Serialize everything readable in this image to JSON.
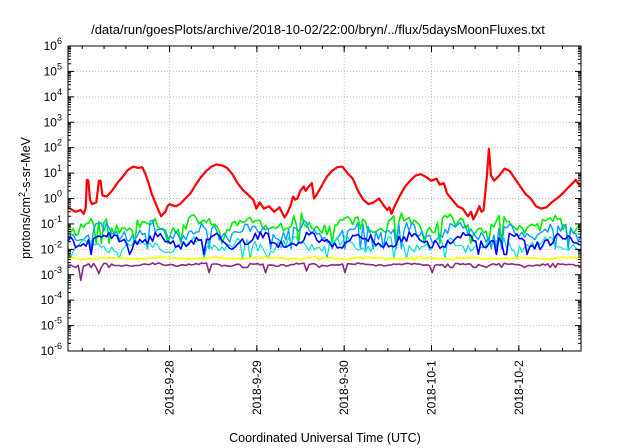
{
  "chart_data": {
    "type": "line",
    "title": "/data/run/goesPlots/archive/2018-10-02/22:00/bryn/../flux/5daysMoonFluxes.txt",
    "xlabel": "Coordinated Universal Time (UTC)",
    "ylabel": {
      "prefix": "protons/cm",
      "sup": "2",
      "suffix": "-s-sr-MeV"
    },
    "y_scale": "log",
    "ylim_exp": [
      -6,
      6
    ],
    "y_tick_base": "10",
    "y_ticks_exp": [
      -6,
      -5,
      -4,
      -3,
      -2,
      -1,
      0,
      1,
      2,
      3,
      4,
      5,
      6
    ],
    "x_range_days": [
      -1.97,
      2.93
    ],
    "x_ticks": [
      {
        "label": "2018-9-28",
        "day": -1
      },
      {
        "label": "2018-9-29",
        "day": -0.166
      },
      {
        "label": "2018-9-30",
        "day": 0.668
      },
      {
        "label": "2018-10-1",
        "day": 1.502
      },
      {
        "label": "2018-10-2",
        "day": 2.336
      }
    ],
    "grid": true,
    "legend": "none",
    "series": [
      {
        "color": "#ff0000",
        "width": 2.2,
        "points": [
          [
            -1.97,
            0.45
          ],
          [
            -1.9,
            0.3
          ],
          [
            -1.85,
            0.35
          ],
          [
            -1.82,
            0.25
          ],
          [
            -1.8,
            0.45
          ],
          [
            -1.79,
            5.5
          ],
          [
            -1.775,
            5.0
          ],
          [
            -1.76,
            0.9
          ],
          [
            -1.74,
            0.6
          ],
          [
            -1.7,
            0.7
          ],
          [
            -1.675,
            5.0
          ],
          [
            -1.66,
            5.0
          ],
          [
            -1.64,
            1.3
          ],
          [
            -1.6,
            1.2
          ],
          [
            -1.55,
            2.0
          ],
          [
            -1.5,
            4.0
          ],
          [
            -1.45,
            7.0
          ],
          [
            -1.4,
            13.0
          ],
          [
            -1.35,
            18.0
          ],
          [
            -1.3,
            16.0
          ],
          [
            -1.26,
            17.0
          ],
          [
            -1.23,
            9.0
          ],
          [
            -1.2,
            4.0
          ],
          [
            -1.17,
            1.5
          ],
          [
            -1.13,
            0.6
          ],
          [
            -1.1,
            0.3
          ],
          [
            -1.08,
            0.2
          ],
          [
            -1.06,
            0.25
          ],
          [
            -1.04,
            0.3
          ],
          [
            -1.02,
            0.5
          ],
          [
            -1.0,
            0.6
          ],
          [
            -0.98,
            0.55
          ],
          [
            -0.94,
            0.5
          ],
          [
            -0.9,
            0.6
          ],
          [
            -0.85,
            1.0
          ],
          [
            -0.8,
            1.6
          ],
          [
            -0.75,
            3.5
          ],
          [
            -0.7,
            7.0
          ],
          [
            -0.65,
            12.0
          ],
          [
            -0.6,
            18.0
          ],
          [
            -0.55,
            22.0
          ],
          [
            -0.5,
            20.0
          ],
          [
            -0.45,
            16.0
          ],
          [
            -0.4,
            9.0
          ],
          [
            -0.35,
            4.0
          ],
          [
            -0.3,
            2.2
          ],
          [
            -0.25,
            1.4
          ],
          [
            -0.2,
            0.9
          ],
          [
            -0.17,
            0.4
          ],
          [
            -0.14,
            0.7
          ],
          [
            -0.1,
            0.4
          ],
          [
            -0.05,
            0.5
          ],
          [
            0.0,
            0.3
          ],
          [
            0.05,
            0.45
          ],
          [
            0.08,
            0.25
          ],
          [
            0.1,
            0.18
          ],
          [
            0.13,
            0.3
          ],
          [
            0.16,
            0.6
          ],
          [
            0.18,
            1.2
          ],
          [
            0.2,
            0.9
          ],
          [
            0.22,
            1.0
          ],
          [
            0.25,
            2.0
          ],
          [
            0.28,
            3.0
          ],
          [
            0.3,
            2.0
          ],
          [
            0.33,
            3.0
          ],
          [
            0.36,
            4.0
          ],
          [
            0.38,
            1.0
          ],
          [
            0.4,
            1.3
          ],
          [
            0.45,
            3.0
          ],
          [
            0.5,
            7.0
          ],
          [
            0.55,
            12.0
          ],
          [
            0.6,
            17.0
          ],
          [
            0.65,
            18.0
          ],
          [
            0.7,
            10.0
          ],
          [
            0.75,
            6.0
          ],
          [
            0.8,
            2.0
          ],
          [
            0.85,
            0.9
          ],
          [
            0.9,
            0.6
          ],
          [
            0.95,
            0.7
          ],
          [
            1.0,
            1.0
          ],
          [
            1.05,
            0.5
          ],
          [
            1.08,
            0.35
          ],
          [
            1.1,
            0.45
          ],
          [
            1.12,
            0.25
          ],
          [
            1.15,
            0.5
          ],
          [
            1.2,
            1.3
          ],
          [
            1.25,
            3.0
          ],
          [
            1.3,
            5.0
          ],
          [
            1.35,
            8.0
          ],
          [
            1.4,
            9.0
          ],
          [
            1.45,
            7.0
          ],
          [
            1.5,
            5.0
          ],
          [
            1.55,
            6.0
          ],
          [
            1.58,
            3.5
          ],
          [
            1.62,
            4.0
          ],
          [
            1.65,
            1.6
          ],
          [
            1.7,
            0.9
          ],
          [
            1.75,
            0.5
          ],
          [
            1.8,
            0.4
          ],
          [
            1.85,
            0.2
          ],
          [
            1.88,
            0.3
          ],
          [
            1.9,
            0.15
          ],
          [
            1.93,
            0.25
          ],
          [
            1.96,
            0.5
          ],
          [
            1.98,
            0.3
          ],
          [
            2.0,
            0.35
          ],
          [
            2.03,
            7.0
          ],
          [
            2.05,
            90.0
          ],
          [
            2.07,
            8.0
          ],
          [
            2.1,
            5.0
          ],
          [
            2.15,
            8.0
          ],
          [
            2.2,
            15.0
          ],
          [
            2.25,
            12.0
          ],
          [
            2.3,
            6.0
          ],
          [
            2.35,
            3.0
          ],
          [
            2.4,
            1.5
          ],
          [
            2.45,
            1.0
          ],
          [
            2.5,
            0.5
          ],
          [
            2.55,
            0.4
          ],
          [
            2.6,
            0.45
          ],
          [
            2.65,
            0.7
          ],
          [
            2.7,
            1.0
          ],
          [
            2.75,
            1.5
          ],
          [
            2.8,
            2.5
          ],
          [
            2.85,
            4.0
          ],
          [
            2.88,
            5.5
          ],
          [
            2.9,
            4.0
          ],
          [
            2.93,
            3.0
          ]
        ]
      },
      {
        "color": "#00ee00",
        "width": 1.6,
        "level": 0.09,
        "spread": 0.8,
        "seed": 11
      },
      {
        "color": "#00a0ff",
        "width": 1.4,
        "level": 0.05,
        "spread": 0.75,
        "seed": 23
      },
      {
        "color": "#00e0d0",
        "width": 1.2,
        "level": 0.015,
        "spread": 0.6,
        "seed": 37
      },
      {
        "color": "#0000ff",
        "width": 1.6,
        "level": 0.022,
        "spread": 0.6,
        "seed": 41
      },
      {
        "color": "#ffff00",
        "width": 1.8,
        "level": 0.0045,
        "spread": 0.08,
        "seed": 53
      },
      {
        "color": "#8b2a7a",
        "width": 1.6,
        "level": 0.0025,
        "spread": 0.12,
        "seed": 67,
        "dips": [
          [
            -1.85,
            0.0006
          ],
          [
            -1.68,
            0.0011
          ],
          [
            -0.62,
            0.0012
          ],
          [
            -0.08,
            0.0012
          ],
          [
            0.3,
            0.0014
          ],
          [
            0.68,
            0.0012
          ],
          [
            1.5,
            0.0012
          ]
        ]
      }
    ]
  }
}
